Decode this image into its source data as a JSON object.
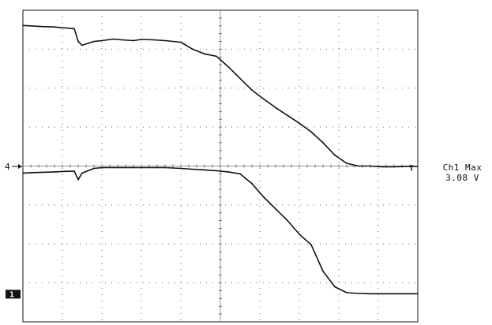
{
  "chart_data": {
    "type": "line",
    "title": "",
    "xlabel": "",
    "ylabel": "",
    "grid": {
      "x_divisions": 10,
      "y_divisions": 8,
      "dotted": true
    },
    "xlim": [
      0,
      10
    ],
    "ylim": [
      0,
      8
    ],
    "markers": {
      "ch4": "4",
      "ch1": "1",
      "trigger": "T"
    },
    "series": [
      {
        "channel": "4",
        "x": [
          0,
          0.2,
          0.5,
          0.8,
          1.0,
          1.3,
          1.4,
          1.5,
          1.8,
          2.0,
          2.3,
          2.5,
          2.8,
          3.0,
          3.3,
          3.6,
          4.0,
          4.3,
          4.6,
          4.9,
          5.2,
          5.5,
          5.8,
          6.1,
          6.4,
          6.7,
          7.0,
          7.3,
          7.6,
          7.9,
          8.2,
          8.5,
          8.8,
          9.1,
          9.4,
          9.7,
          10.0
        ],
        "y": [
          7.61,
          7.6,
          7.58,
          7.57,
          7.55,
          7.53,
          7.2,
          7.1,
          7.2,
          7.22,
          7.26,
          7.24,
          7.22,
          7.25,
          7.24,
          7.22,
          7.18,
          7.0,
          6.88,
          6.82,
          6.55,
          6.25,
          5.95,
          5.72,
          5.5,
          5.3,
          5.1,
          4.88,
          4.6,
          4.28,
          4.07,
          4.0,
          4.0,
          3.98,
          3.98,
          3.99,
          3.99
        ]
      },
      {
        "channel": "1",
        "x": [
          0,
          0.2,
          0.5,
          0.8,
          1.0,
          1.3,
          1.4,
          1.5,
          1.8,
          2.0,
          2.3,
          2.5,
          2.8,
          3.0,
          3.3,
          3.6,
          4.0,
          4.3,
          4.6,
          4.9,
          5.2,
          5.5,
          5.8,
          6.1,
          6.4,
          6.7,
          7.0,
          7.3,
          7.6,
          7.9,
          8.2,
          8.5,
          8.8,
          9.1,
          9.4,
          9.7,
          10.0
        ],
        "y": [
          3.82,
          3.83,
          3.84,
          3.85,
          3.86,
          3.87,
          3.65,
          3.82,
          3.94,
          3.96,
          3.96,
          3.96,
          3.96,
          3.96,
          3.96,
          3.96,
          3.94,
          3.92,
          3.9,
          3.88,
          3.85,
          3.8,
          3.55,
          3.2,
          2.9,
          2.6,
          2.25,
          1.98,
          1.3,
          0.9,
          0.75,
          0.73,
          0.72,
          0.72,
          0.72,
          0.72,
          0.72
        ]
      }
    ],
    "readout": {
      "line1": "Ch1 Max",
      "line2": "3.08 V"
    }
  }
}
